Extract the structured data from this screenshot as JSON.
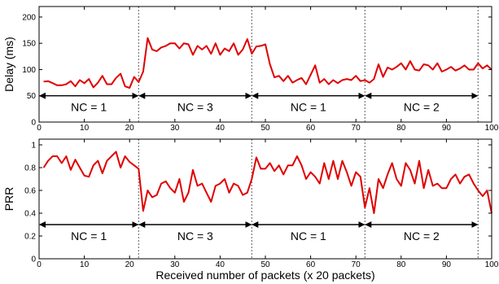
{
  "chart_data": [
    {
      "type": "line",
      "ylabel": "Delay (ms)",
      "xlabel": "",
      "xlim": [
        0,
        100
      ],
      "ylim": [
        0,
        220
      ],
      "xticks": [
        0,
        10,
        20,
        30,
        40,
        50,
        60,
        70,
        80,
        90,
        100
      ],
      "yticks": [
        0,
        50,
        100,
        150,
        200
      ],
      "grid": false,
      "line_color": "#e00000",
      "dividers": [
        22,
        47,
        72,
        97
      ],
      "arrow_y": 50,
      "segments": [
        {
          "label": "NC = 1",
          "x_start": 0,
          "x_end": 22
        },
        {
          "label": "NC = 3",
          "x_start": 22,
          "x_end": 47
        },
        {
          "label": "NC = 1",
          "x_start": 47,
          "x_end": 72
        },
        {
          "label": "NC = 2",
          "x_start": 72,
          "x_end": 97
        }
      ],
      "series": [
        {
          "x": [
            1,
            2,
            3,
            4,
            5,
            6,
            7,
            8,
            9,
            10,
            11,
            12,
            13,
            14,
            15,
            16,
            17,
            18,
            19,
            20,
            21,
            22,
            23,
            24,
            25,
            26,
            27,
            28,
            29,
            30,
            31,
            32,
            33,
            34,
            35,
            36,
            37,
            38,
            39,
            40,
            41,
            42,
            43,
            44,
            45,
            46,
            47,
            48,
            49,
            50,
            51,
            52,
            53,
            54,
            55,
            56,
            57,
            58,
            59,
            60,
            61,
            62,
            63,
            64,
            65,
            66,
            67,
            68,
            69,
            70,
            71,
            72,
            73,
            74,
            75,
            76,
            77,
            78,
            79,
            80,
            81,
            82,
            83,
            84,
            85,
            86,
            87,
            88,
            89,
            90,
            91,
            92,
            93,
            94,
            95,
            96,
            97,
            98,
            99,
            100
          ],
          "values": [
            77,
            78,
            74,
            70,
            70,
            72,
            78,
            68,
            80,
            74,
            82,
            66,
            75,
            88,
            72,
            72,
            84,
            92,
            68,
            65,
            86,
            76,
            96,
            160,
            138,
            135,
            142,
            145,
            150,
            150,
            140,
            150,
            148,
            128,
            145,
            138,
            145,
            130,
            150,
            128,
            140,
            135,
            150,
            128,
            138,
            158,
            130,
            144,
            145,
            148,
            110,
            85,
            88,
            78,
            88,
            75,
            80,
            84,
            72,
            90,
            108,
            75,
            82,
            72,
            80,
            74,
            80,
            82,
            80,
            88,
            78,
            80,
            75,
            82,
            110,
            86,
            104,
            100,
            105,
            112,
            100,
            116,
            100,
            98,
            110,
            108,
            100,
            112,
            96,
            100,
            105,
            98,
            102,
            108,
            100,
            100,
            112,
            102,
            108,
            100
          ]
        }
      ]
    },
    {
      "type": "line",
      "ylabel": "PRR",
      "xlabel": "Received number of packets (x 20 packets)",
      "xlim": [
        0,
        100
      ],
      "ylim": [
        0,
        1.05
      ],
      "xticks": [
        0,
        10,
        20,
        30,
        40,
        50,
        60,
        70,
        80,
        90,
        100
      ],
      "yticks": [
        0,
        0.2,
        0.4,
        0.6,
        0.8,
        1
      ],
      "grid": false,
      "line_color": "#e00000",
      "dividers": [
        22,
        47,
        72,
        97
      ],
      "arrow_y": 0.3,
      "segments": [
        {
          "label": "NC = 1",
          "x_start": 0,
          "x_end": 22
        },
        {
          "label": "NC = 3",
          "x_start": 22,
          "x_end": 47
        },
        {
          "label": "NC = 1",
          "x_start": 47,
          "x_end": 72
        },
        {
          "label": "NC = 2",
          "x_start": 72,
          "x_end": 97
        }
      ],
      "series": [
        {
          "x": [
            1,
            2,
            3,
            4,
            5,
            6,
            7,
            8,
            9,
            10,
            11,
            12,
            13,
            14,
            15,
            16,
            17,
            18,
            19,
            20,
            21,
            22,
            23,
            24,
            25,
            26,
            27,
            28,
            29,
            30,
            31,
            32,
            33,
            34,
            35,
            36,
            37,
            38,
            39,
            40,
            41,
            42,
            43,
            44,
            45,
            46,
            47,
            48,
            49,
            50,
            51,
            52,
            53,
            54,
            55,
            56,
            57,
            58,
            59,
            60,
            61,
            62,
            63,
            64,
            65,
            66,
            67,
            68,
            69,
            70,
            71,
            72,
            73,
            74,
            75,
            76,
            77,
            78,
            79,
            80,
            81,
            82,
            83,
            84,
            85,
            86,
            87,
            88,
            89,
            90,
            91,
            92,
            93,
            94,
            95,
            96,
            97,
            98,
            99,
            100
          ],
          "values": [
            0.8,
            0.86,
            0.9,
            0.9,
            0.84,
            0.9,
            0.78,
            0.87,
            0.8,
            0.73,
            0.72,
            0.82,
            0.86,
            0.75,
            0.86,
            0.9,
            0.94,
            0.8,
            0.9,
            0.85,
            0.82,
            0.79,
            0.42,
            0.6,
            0.54,
            0.56,
            0.66,
            0.68,
            0.62,
            0.58,
            0.7,
            0.5,
            0.58,
            0.78,
            0.64,
            0.66,
            0.58,
            0.5,
            0.64,
            0.66,
            0.7,
            0.58,
            0.66,
            0.64,
            0.56,
            0.58,
            0.7,
            0.89,
            0.79,
            0.79,
            0.84,
            0.77,
            0.82,
            0.74,
            0.82,
            0.82,
            0.9,
            0.82,
            0.7,
            0.76,
            0.72,
            0.66,
            0.84,
            0.7,
            0.86,
            0.7,
            0.86,
            0.76,
            0.64,
            0.76,
            0.72,
            0.45,
            0.62,
            0.4,
            0.7,
            0.62,
            0.74,
            0.84,
            0.7,
            0.64,
            0.84,
            0.78,
            0.66,
            0.86,
            0.62,
            0.78,
            0.64,
            0.66,
            0.62,
            0.62,
            0.7,
            0.74,
            0.66,
            0.72,
            0.74,
            0.66,
            0.6,
            0.55,
            0.6,
            0.4
          ]
        }
      ]
    }
  ]
}
